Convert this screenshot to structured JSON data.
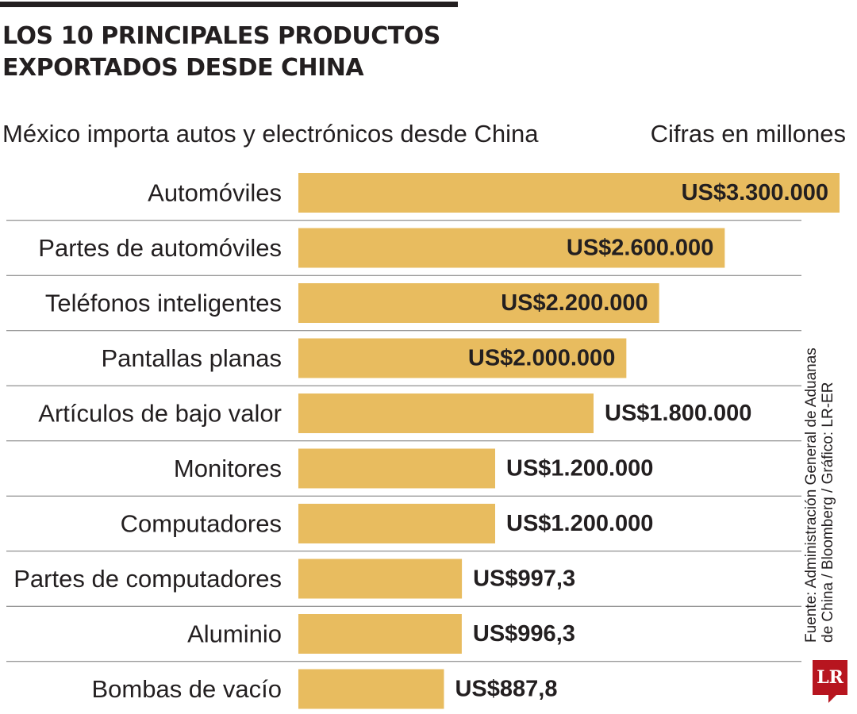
{
  "header": {
    "title": "LOS 10 PRINCIPALES PRODUCTOS EXPORTADOS DESDE CHINA",
    "subtitle": "México importa autos y electrónicos desde China",
    "units": "Cifras en millones"
  },
  "source": {
    "line1": "Fuente: Administración General de Aduanas",
    "line2": "de China / Bloomberg / Gráfico: LR-ER"
  },
  "logo": {
    "text": "LR"
  },
  "colors": {
    "bar": "#e8bc5f",
    "text": "#231f20",
    "rule": "#777777",
    "logo": "#b7151f"
  },
  "chart_data": {
    "type": "bar",
    "orientation": "horizontal",
    "title": "LOS 10 PRINCIPALES PRODUCTOS EXPORTADOS DESDE CHINA",
    "subtitle": "México importa autos y electrónicos desde China",
    "units_note": "Cifras en millones",
    "grid": false,
    "categories": [
      "Automóviles",
      "Partes de automóviles",
      "Teléfonos inteligentes",
      "Pantallas planas",
      "Artículos de bajo valor",
      "Monitores",
      "Computadores",
      "Partes de computadores",
      "Aluminio",
      "Bombas de vacío"
    ],
    "values": [
      3300000,
      2600000,
      2200000,
      2000000,
      1800000,
      1200000,
      1200000,
      997.3,
      996.3,
      887.8
    ],
    "bar_lengths": [
      3300,
      2600,
      2200,
      2000,
      1800,
      1200,
      1200,
      997.3,
      996.3,
      887.8
    ],
    "value_labels": [
      "US$3.300.000",
      "US$2.600.000",
      "US$2.200.000",
      "US$2.000.000",
      "US$1.800.000",
      "US$1.200.000",
      "US$1.200.000",
      "US$997,3",
      "US$996,3",
      "US$887,8"
    ],
    "labels_inside": [
      true,
      true,
      true,
      true,
      false,
      false,
      false,
      false,
      false,
      false
    ]
  }
}
